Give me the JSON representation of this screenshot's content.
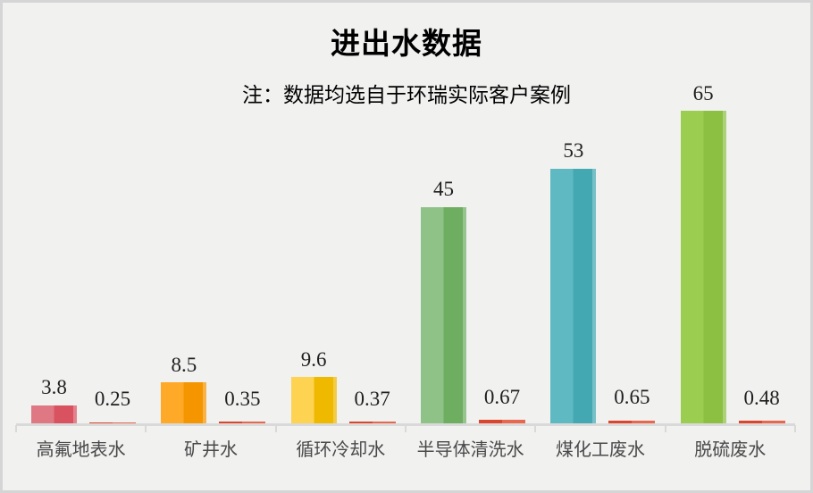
{
  "window": {
    "background": "#F1F1F0",
    "border_color": "#D5D5D5"
  },
  "chart_data": {
    "type": "bar",
    "title": "进出水数据",
    "subtitle": "注：数据均选自于环瑞实际客户案例",
    "categories": [
      "高氟地表水",
      "矿井水",
      "循环冷却水",
      "半导体清洗水",
      "煤化工废水",
      "脱硫废水"
    ],
    "series": [
      {
        "role": "inlet",
        "values": [
          3.8,
          8.5,
          9.6,
          45,
          53,
          65
        ]
      },
      {
        "role": "outlet",
        "values": [
          0.25,
          0.35,
          0.37,
          0.67,
          0.65,
          0.48
        ]
      }
    ],
    "ylim": [
      0,
      65
    ],
    "grid": false,
    "legend": "none",
    "axis_color": "#D9D9D9",
    "value_label_color": "#1F1F1F",
    "category_label_color": "#4A4A4A",
    "bar_colors": [
      {
        "light": "#E07883",
        "dark": "#D95260"
      },
      {
        "light": "#FFA928",
        "dark": "#F59600"
      },
      {
        "light": "#FDD351",
        "dark": "#EFB900"
      },
      {
        "light": "#8FC287",
        "dark": "#6EAE60"
      },
      {
        "light": "#5FB9C3",
        "dark": "#43A8B2"
      },
      {
        "light": "#9BCD51",
        "dark": "#8CC042"
      }
    ],
    "outlet_bar_color": {
      "light": "#E8684F",
      "dark": "#DC452C"
    }
  }
}
